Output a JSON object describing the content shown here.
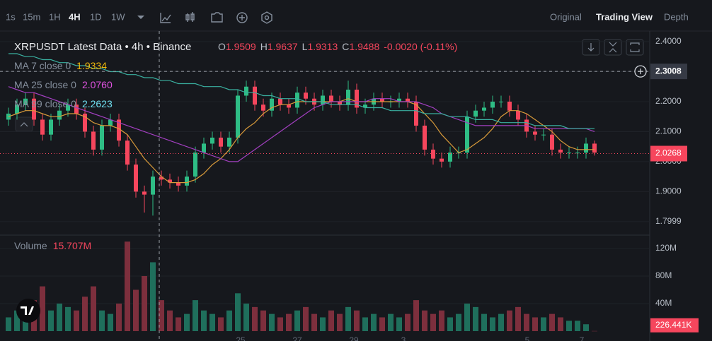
{
  "toolbar": {
    "intervals": [
      "1s",
      "15m",
      "1H",
      "4H",
      "1D",
      "1W"
    ],
    "active": "4H",
    "views": [
      "Original",
      "Trading View",
      "Depth"
    ],
    "active_view": "Trading View"
  },
  "chart_data": {
    "type": "candlestick",
    "title": "XRPUSDT Latest Data • 4h • Binance",
    "ohlc": [
      {
        "key": "O",
        "text": "1.9509"
      },
      {
        "key": "H",
        "text": "1.9637"
      },
      {
        "key": "L",
        "text": "1.9313"
      },
      {
        "key": "C",
        "text": "1.9488"
      }
    ],
    "change": "-0.0020 (-0.11%)",
    "up_color": "#2ebd85",
    "down_color": "#f6465d",
    "open": [
      2.14,
      2.16,
      2.19,
      2.21,
      2.14,
      2.09,
      2.14,
      2.17,
      2.19,
      2.16,
      2.1,
      2.04,
      2.12,
      2.14,
      2.07,
      1.99,
      1.9,
      1.89,
      1.95,
      1.94,
      1.93,
      1.92,
      1.95,
      2.03,
      2.06,
      2.08,
      2.05,
      2.08,
      2.22,
      2.25,
      2.19,
      2.17,
      2.21,
      2.19,
      2.18,
      2.23,
      2.21,
      2.19,
      2.22,
      2.2,
      2.19,
      2.24,
      2.18,
      2.19,
      2.21,
      2.2,
      2.2,
      2.21,
      2.2,
      2.12,
      2.04,
      2.01,
      2.0,
      2.03,
      2.03,
      2.15,
      2.17,
      2.18,
      2.2,
      2.2,
      2.17,
      2.14,
      2.1,
      2.09,
      2.09,
      2.04,
      2.03,
      2.03,
      2.03,
      2.06
    ],
    "high": [
      2.18,
      2.21,
      2.23,
      2.23,
      2.16,
      2.16,
      2.19,
      2.21,
      2.21,
      2.18,
      2.12,
      2.14,
      2.16,
      2.16,
      2.09,
      2.01,
      1.92,
      1.97,
      1.97,
      1.96,
      1.95,
      1.97,
      2.05,
      2.08,
      2.1,
      2.1,
      2.1,
      2.24,
      2.27,
      2.27,
      2.21,
      2.23,
      2.23,
      2.21,
      2.25,
      2.25,
      2.23,
      2.24,
      2.24,
      2.22,
      2.27,
      2.26,
      2.21,
      2.23,
      2.23,
      2.22,
      2.23,
      2.23,
      2.22,
      2.14,
      2.06,
      2.03,
      2.05,
      2.05,
      2.17,
      2.19,
      2.2,
      2.22,
      2.22,
      2.22,
      2.19,
      2.16,
      2.12,
      2.11,
      2.11,
      2.06,
      2.05,
      2.05,
      2.08,
      2.07
    ],
    "low": [
      2.12,
      2.14,
      2.17,
      2.12,
      2.07,
      2.07,
      2.12,
      2.15,
      2.14,
      2.08,
      2.02,
      2.02,
      2.1,
      2.05,
      1.97,
      1.88,
      1.83,
      1.82,
      1.92,
      1.91,
      1.9,
      1.9,
      1.93,
      2.01,
      2.04,
      2.03,
      2.03,
      2.06,
      2.2,
      2.17,
      2.15,
      2.15,
      2.17,
      2.16,
      2.16,
      2.19,
      2.17,
      2.17,
      2.18,
      2.17,
      2.17,
      2.16,
      2.16,
      2.17,
      2.18,
      2.18,
      2.18,
      2.18,
      2.1,
      2.02,
      1.99,
      1.98,
      1.98,
      2.01,
      2.01,
      2.13,
      2.15,
      2.16,
      2.18,
      2.15,
      2.12,
      2.08,
      2.07,
      2.07,
      2.02,
      2.01,
      2.01,
      2.01,
      2.01,
      2.02
    ],
    "close": [
      2.16,
      2.19,
      2.21,
      2.14,
      2.09,
      2.14,
      2.17,
      2.19,
      2.16,
      2.1,
      2.04,
      2.12,
      2.14,
      2.07,
      1.99,
      1.9,
      1.89,
      1.95,
      1.94,
      1.93,
      1.92,
      1.95,
      2.03,
      2.06,
      2.08,
      2.05,
      2.08,
      2.22,
      2.25,
      2.19,
      2.17,
      2.21,
      2.19,
      2.18,
      2.23,
      2.21,
      2.19,
      2.22,
      2.2,
      2.19,
      2.24,
      2.18,
      2.19,
      2.21,
      2.2,
      2.2,
      2.21,
      2.2,
      2.12,
      2.04,
      2.01,
      2.0,
      2.03,
      2.03,
      2.15,
      2.17,
      2.18,
      2.2,
      2.2,
      2.17,
      2.14,
      2.1,
      2.09,
      2.09,
      2.04,
      2.03,
      2.03,
      2.03,
      2.06,
      2.03
    ],
    "series": [
      {
        "name": "MA 7 close 0",
        "last": "1.9334",
        "color": "#d89a3a",
        "label_color": "#f0b90b",
        "values": [
          2.15,
          2.16,
          2.17,
          2.17,
          2.16,
          2.15,
          2.15,
          2.16,
          2.16,
          2.15,
          2.13,
          2.12,
          2.12,
          2.11,
          2.09,
          2.05,
          2.01,
          1.98,
          1.95,
          1.93,
          1.93,
          1.93,
          1.94,
          1.96,
          1.99,
          2.01,
          2.04,
          2.08,
          2.11,
          2.13,
          2.16,
          2.18,
          2.19,
          2.19,
          2.2,
          2.2,
          2.2,
          2.2,
          2.2,
          2.2,
          2.21,
          2.2,
          2.2,
          2.2,
          2.2,
          2.2,
          2.2,
          2.2,
          2.19,
          2.16,
          2.13,
          2.09,
          2.06,
          2.03,
          2.04,
          2.06,
          2.08,
          2.11,
          2.15,
          2.17,
          2.17,
          2.16,
          2.14,
          2.12,
          2.1,
          2.07,
          2.05,
          2.04,
          2.04,
          2.04
        ]
      },
      {
        "name": "MA 25 close 0",
        "last": "2.0760",
        "color": "#a23fc0",
        "label_color": "#e052e0",
        "values": [
          2.25,
          2.24,
          2.23,
          2.23,
          2.22,
          2.21,
          2.2,
          2.19,
          2.18,
          2.17,
          2.16,
          2.15,
          2.14,
          2.13,
          2.12,
          2.11,
          2.1,
          2.09,
          2.08,
          2.07,
          2.06,
          2.05,
          2.04,
          2.03,
          2.02,
          2.01,
          2.0,
          2.0,
          2.02,
          2.04,
          2.06,
          2.08,
          2.1,
          2.12,
          2.14,
          2.16,
          2.18,
          2.19,
          2.2,
          2.2,
          2.2,
          2.2,
          2.2,
          2.21,
          2.21,
          2.21,
          2.2,
          2.2,
          2.2,
          2.19,
          2.18,
          2.16,
          2.15,
          2.14,
          2.13,
          2.12,
          2.12,
          2.12,
          2.12,
          2.12,
          2.12,
          2.12,
          2.11,
          2.11,
          2.11,
          2.11,
          2.11,
          2.11,
          2.11,
          2.1
        ]
      },
      {
        "name": "MA 99 close 0",
        "last": "2.2623",
        "color": "#3ab0a0",
        "label_color": "#6fe0f0",
        "values": [
          2.36,
          2.36,
          2.35,
          2.35,
          2.34,
          2.34,
          2.33,
          2.33,
          2.32,
          2.32,
          2.31,
          2.31,
          2.3,
          2.3,
          2.29,
          2.29,
          2.28,
          2.28,
          2.27,
          2.27,
          2.26,
          2.26,
          2.26,
          2.25,
          2.25,
          2.25,
          2.24,
          2.24,
          2.23,
          2.23,
          2.22,
          2.22,
          2.21,
          2.21,
          2.21,
          2.2,
          2.2,
          2.2,
          2.19,
          2.19,
          2.19,
          2.19,
          2.18,
          2.18,
          2.18,
          2.17,
          2.17,
          2.17,
          2.17,
          2.16,
          2.16,
          2.16,
          2.15,
          2.15,
          2.15,
          2.14,
          2.14,
          2.14,
          2.13,
          2.13,
          2.13,
          2.13,
          2.12,
          2.12,
          2.12,
          2.12,
          2.11,
          2.11,
          2.11,
          2.11
        ]
      }
    ],
    "ylim": [
      1.762,
      2.433
    ],
    "yticks": [
      {
        "value": 2.4,
        "label": "2.4000"
      },
      {
        "value": 2.3,
        "label": "2.3000"
      },
      {
        "value": 2.2,
        "label": "2.2000"
      },
      {
        "value": 2.1,
        "label": "2.1000"
      },
      {
        "value": 2.0,
        "label": "2.0000"
      },
      {
        "value": 1.9,
        "label": "1.9000"
      },
      {
        "value": 1.7999,
        "label": "1.7999"
      }
    ],
    "crosshair": {
      "value": 2.3008,
      "label": "2.3008"
    },
    "last_price": {
      "value": 2.0268,
      "label": "2.0268"
    },
    "x_labels": [
      "25",
      "27",
      "29",
      "3",
      "5",
      "7"
    ],
    "volume": {
      "name": "Volume",
      "last": "15.707M",
      "values": [
        20,
        30,
        25,
        45,
        65,
        30,
        40,
        35,
        30,
        50,
        65,
        30,
        25,
        40,
        130,
        60,
        80,
        100,
        45,
        30,
        20,
        25,
        45,
        30,
        25,
        20,
        30,
        55,
        40,
        35,
        30,
        25,
        20,
        25,
        30,
        35,
        25,
        20,
        30,
        25,
        35,
        30,
        20,
        25,
        20,
        25,
        20,
        25,
        45,
        30,
        25,
        30,
        20,
        25,
        40,
        35,
        25,
        20,
        25,
        30,
        35,
        25,
        20,
        20,
        25,
        20,
        15,
        15,
        10,
        0.226441
      ],
      "ylim": [
        0,
        137.4
      ],
      "yticks": [
        {
          "value": 120,
          "label": "120M"
        },
        {
          "value": 80,
          "label": "80M"
        },
        {
          "value": 40,
          "label": "40M"
        }
      ],
      "current": {
        "value": 0.226441,
        "label": "226.441K"
      },
      "up_color": "#1f6f5c",
      "down_color": "#7d2f3d"
    }
  }
}
